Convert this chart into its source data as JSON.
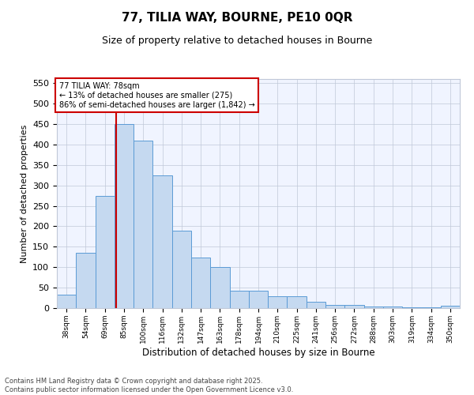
{
  "title_line1": "77, TILIA WAY, BOURNE, PE10 0QR",
  "title_line2": "Size of property relative to detached houses in Bourne",
  "xlabel": "Distribution of detached houses by size in Bourne",
  "ylabel": "Number of detached properties",
  "categories": [
    "38sqm",
    "54sqm",
    "69sqm",
    "85sqm",
    "100sqm",
    "116sqm",
    "132sqm",
    "147sqm",
    "163sqm",
    "178sqm",
    "194sqm",
    "210sqm",
    "225sqm",
    "241sqm",
    "256sqm",
    "272sqm",
    "288sqm",
    "303sqm",
    "319sqm",
    "334sqm",
    "350sqm"
  ],
  "values": [
    33,
    135,
    275,
    450,
    410,
    325,
    190,
    123,
    100,
    43,
    43,
    29,
    29,
    15,
    7,
    8,
    3,
    4,
    2,
    2,
    5
  ],
  "bar_color": "#c5d9f0",
  "bar_edge_color": "#5b9bd5",
  "vline_color": "#cc0000",
  "vline_x": 2.57,
  "ylim": [
    0,
    560
  ],
  "yticks": [
    0,
    50,
    100,
    150,
    200,
    250,
    300,
    350,
    400,
    450,
    500,
    550
  ],
  "annotation_text": "77 TILIA WAY: 78sqm\n← 13% of detached houses are smaller (275)\n86% of semi-detached houses are larger (1,842) →",
  "annotation_box_facecolor": "#ffffff",
  "annotation_box_edgecolor": "#cc0000",
  "footer_line1": "Contains HM Land Registry data © Crown copyright and database right 2025.",
  "footer_line2": "Contains public sector information licensed under the Open Government Licence v3.0.",
  "bg_color": "#ffffff",
  "plot_bg_color": "#f0f4ff",
  "grid_color": "#c0c8d8",
  "title_fontsize": 11,
  "subtitle_fontsize": 9,
  "ylabel_fontsize": 8,
  "xlabel_fontsize": 8.5,
  "ytick_fontsize": 8,
  "xtick_fontsize": 6.5,
  "ann_fontsize": 7,
  "footer_fontsize": 6
}
